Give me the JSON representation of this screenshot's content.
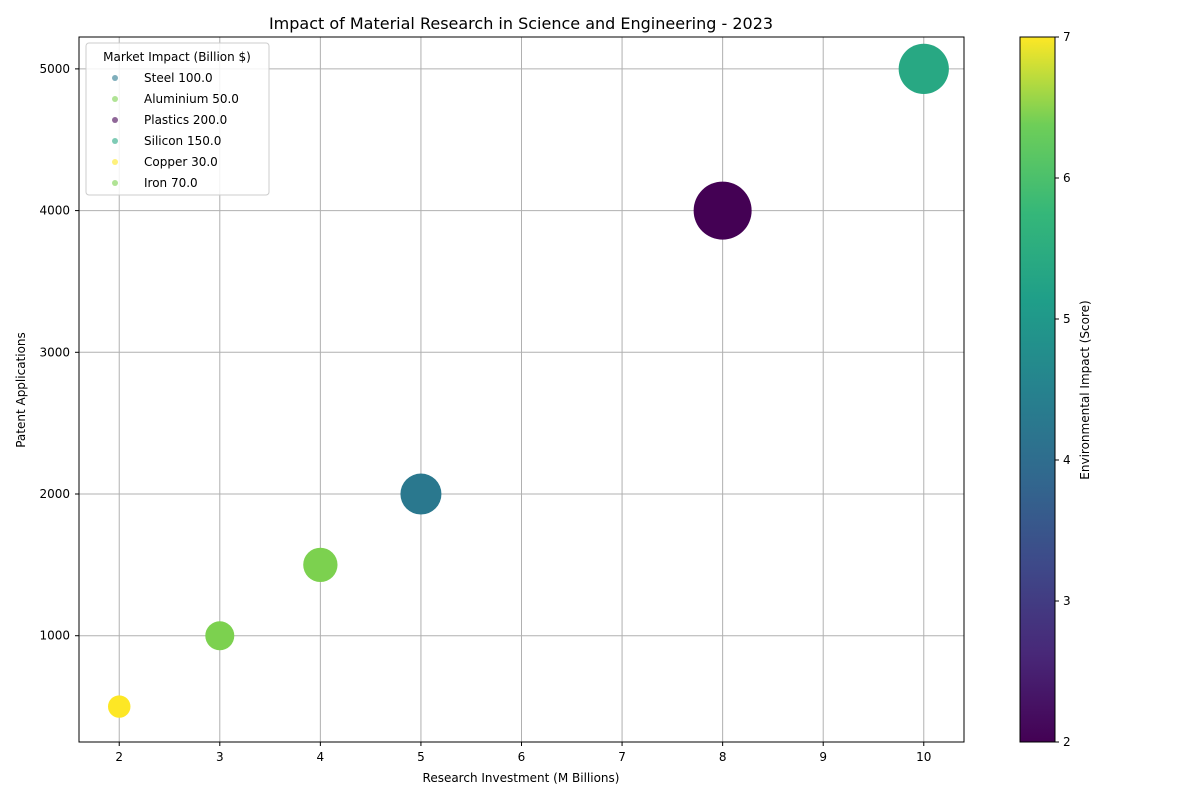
{
  "chart_data": {
    "type": "scatter",
    "title": "Impact of Material Research in Science and Engineering - 2023",
    "xlabel": "Research Investment (M Billions)",
    "ylabel": "Patent Applications",
    "xlim": [
      1.6,
      10.4
    ],
    "ylim": [
      250,
      5225
    ],
    "x_ticks": [
      "2",
      "3",
      "4",
      "5",
      "6",
      "7",
      "8",
      "9",
      "10"
    ],
    "y_ticks": [
      "1000",
      "2000",
      "3000",
      "4000",
      "5000"
    ],
    "grid": true,
    "legend": {
      "title": "Market Impact (Billion $)",
      "placement": "upper-left",
      "entries": [
        "Steel 100.0",
        "Aluminium 50.0",
        "Plastics 200.0",
        "Silicon 150.0",
        "Copper 30.0",
        "Iron 70.0"
      ]
    },
    "colorbar": {
      "label": "Environmental Impact (Score)",
      "range": [
        2,
        7
      ],
      "ticks": [
        "2",
        "3",
        "4",
        "5",
        "6",
        "7"
      ],
      "colormap": "viridis"
    },
    "size_encoding": "Market Impact (Billion $)",
    "series": [
      {
        "material": "Steel",
        "x": 5,
        "y": 2000,
        "market_impact": 100.0,
        "environmental_impact": 4
      },
      {
        "material": "Aluminium",
        "x": 3,
        "y": 1000,
        "market_impact": 50.0,
        "environmental_impact": 6
      },
      {
        "material": "Plastics",
        "x": 8,
        "y": 4000,
        "market_impact": 200.0,
        "environmental_impact": 2
      },
      {
        "material": "Silicon",
        "x": 10,
        "y": 5000,
        "market_impact": 150.0,
        "environmental_impact": 5
      },
      {
        "material": "Copper",
        "x": 2,
        "y": 500,
        "market_impact": 30.0,
        "environmental_impact": 7
      },
      {
        "material": "Iron",
        "x": 4,
        "y": 1500,
        "market_impact": 70.0,
        "environmental_impact": 6
      }
    ],
    "colors": {
      "grid": "#b0b0b0",
      "axis": "#000000",
      "viridis_stops": [
        "#440154",
        "#3b528b",
        "#21918c",
        "#5ec962",
        "#fde725"
      ]
    }
  }
}
